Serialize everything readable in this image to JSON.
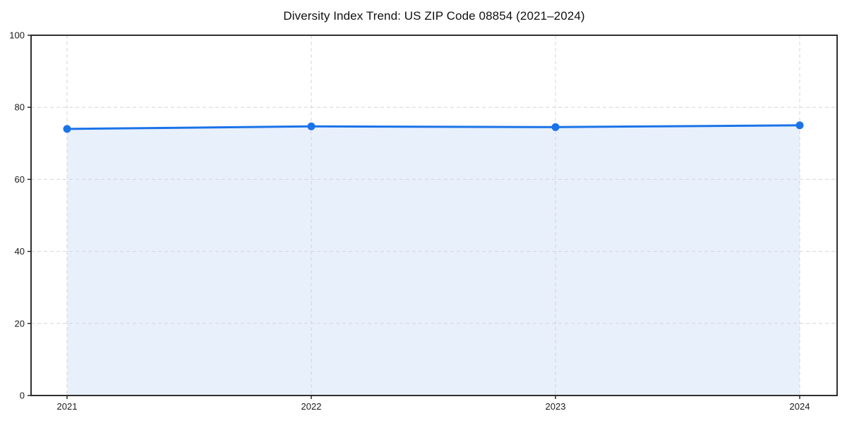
{
  "chart_data": {
    "type": "area",
    "title": "Diversity Index Trend: US ZIP Code 08854 (2021–2024)",
    "x": [
      "2021",
      "2022",
      "2023",
      "2024"
    ],
    "series": [
      {
        "name": "Diversity Index",
        "values": [
          74.0,
          74.7,
          74.5,
          75.0
        ]
      }
    ],
    "xlabel": "",
    "ylabel": "",
    "ylim": [
      0,
      100
    ],
    "yticks": [
      0,
      20,
      40,
      60,
      80,
      100
    ],
    "grid": true,
    "grid_style": "dashed",
    "legend": false,
    "colors": {
      "line": "#1a73e8",
      "marker": "#1a73e8",
      "fill": "#e8f0fc",
      "grid": "#d5d5d5",
      "spine": "#1a1a1a",
      "tick_text": "#1a1a1a",
      "background": "#ffffff"
    }
  }
}
